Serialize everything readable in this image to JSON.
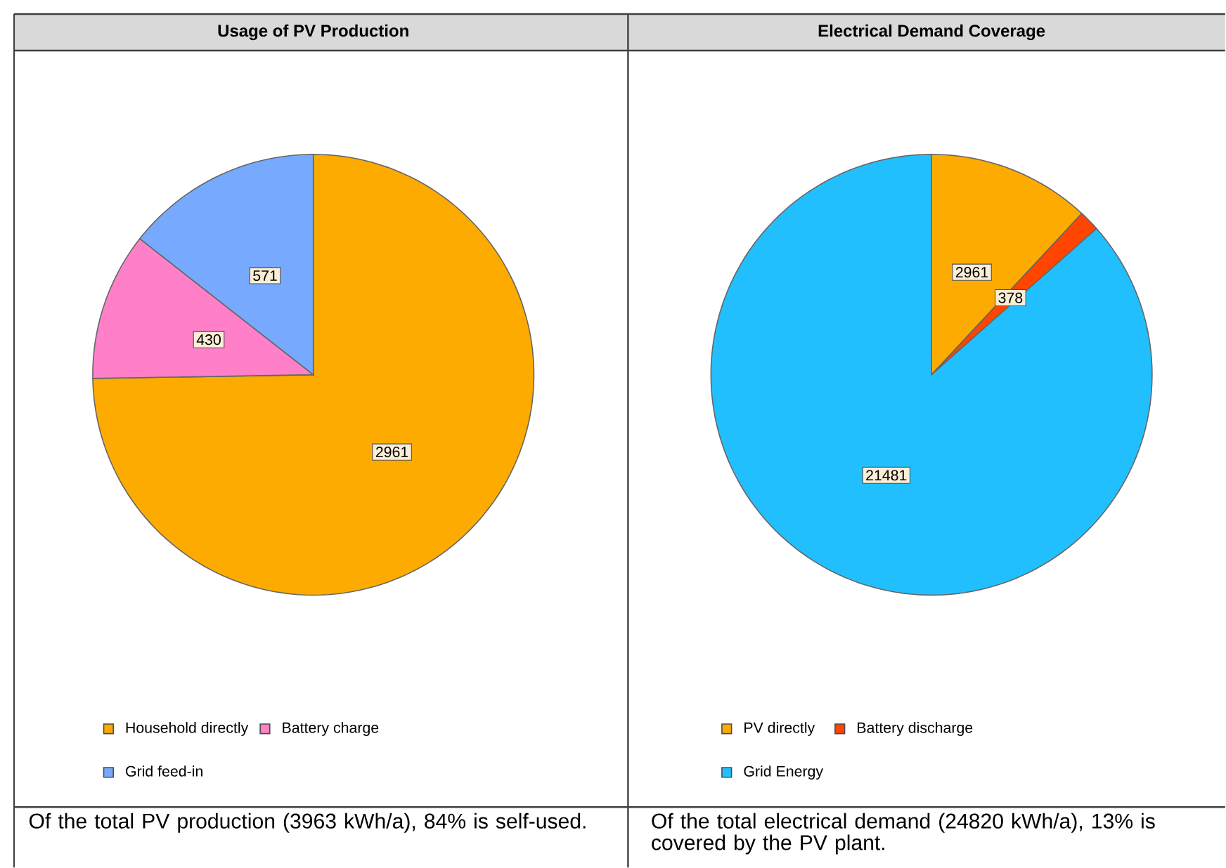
{
  "chart_data": [
    {
      "type": "pie",
      "title": "Usage of PV Production",
      "categories": [
        "Household directly",
        "Battery charge",
        "Grid feed-in"
      ],
      "values": [
        2961,
        430,
        571
      ],
      "colors": [
        "#fdab00",
        "#ff80c9",
        "#77aaff"
      ],
      "data_labels": true,
      "legend": "bottom",
      "annotations": [
        "Of the total PV production (3963 kWh/a), 84% is self-used."
      ]
    },
    {
      "type": "pie",
      "title": "Electrical Demand Coverage",
      "categories": [
        "PV directly",
        "Battery discharge",
        "Grid Energy"
      ],
      "values": [
        2961,
        378,
        21481
      ],
      "colors": [
        "#fdab00",
        "#ff4500",
        "#22bfff"
      ],
      "data_labels": true,
      "legend": "bottom",
      "annotations": [
        "Of the total electrical demand (24820 kWh/a), 13% is covered by the PV plant."
      ]
    }
  ]
}
